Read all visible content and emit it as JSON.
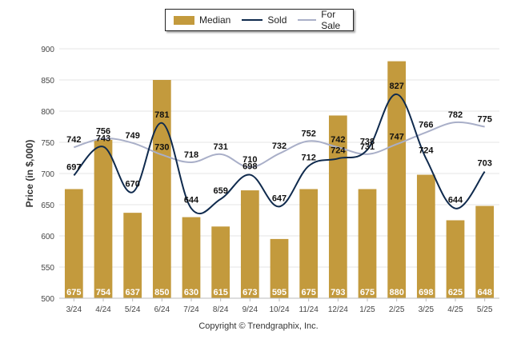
{
  "legend": {
    "median_label": "Median",
    "sold_label": "Sold",
    "forsale_label": "For Sale"
  },
  "copyright": "Copyright © Trendgraphix, Inc.",
  "colors": {
    "median_bar": "#c39a3d",
    "sold_line": "#0f2a4d",
    "forsale_line": "#a9afc8",
    "grid": "#e4e4e4"
  },
  "chart_data": {
    "type": "bar",
    "categories": [
      "3/24",
      "4/24",
      "5/24",
      "6/24",
      "7/24",
      "8/24",
      "9/24",
      "10/24",
      "11/24",
      "12/24",
      "1/25",
      "2/25",
      "3/25",
      "4/25",
      "5/25"
    ],
    "ylabel": "Price (in $,000)",
    "ylim": [
      500,
      900
    ],
    "yticks": [
      500,
      550,
      600,
      650,
      700,
      750,
      800,
      850,
      900
    ],
    "grid": true,
    "legend_position": "top",
    "series": [
      {
        "name": "Median",
        "kind": "bar",
        "values": [
          675,
          754,
          637,
          850,
          630,
          615,
          673,
          595,
          675,
          793,
          675,
          880,
          698,
          625,
          648
        ]
      },
      {
        "name": "Sold",
        "kind": "line",
        "values": [
          697,
          743,
          670,
          781,
          644,
          659,
          698,
          647,
          712,
          724,
          738,
          827,
          724,
          644,
          703
        ]
      },
      {
        "name": "For Sale",
        "kind": "line",
        "values": [
          742,
          756,
          749,
          730,
          718,
          731,
          710,
          732,
          752,
          742,
          731,
          747,
          766,
          782,
          775
        ]
      }
    ]
  }
}
